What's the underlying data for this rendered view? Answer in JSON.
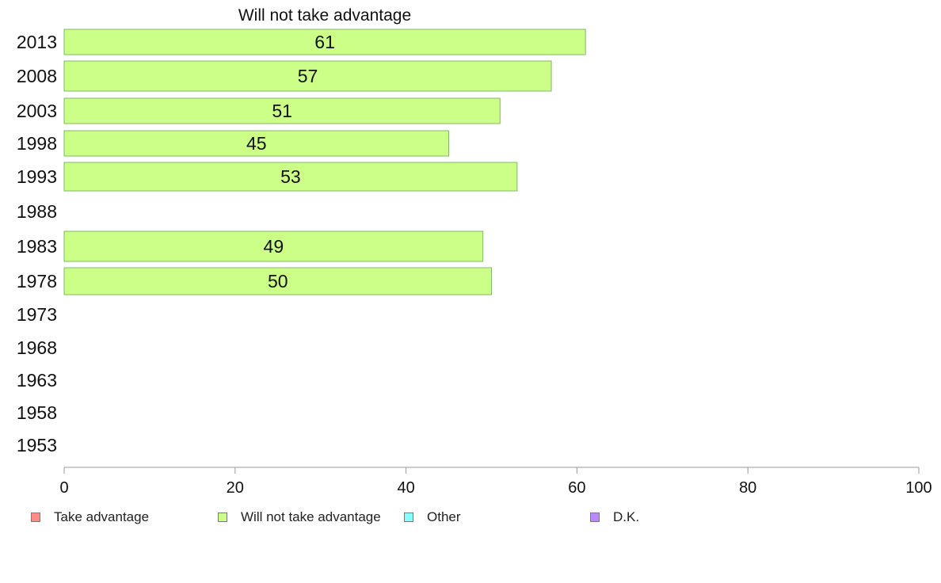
{
  "chart_data": {
    "type": "bar",
    "orientation": "horizontal",
    "title": "Will not take advantage",
    "categories": [
      "2013",
      "2008",
      "2003",
      "1998",
      "1993",
      "1988",
      "1983",
      "1978",
      "1973",
      "1968",
      "1963",
      "1958",
      "1953"
    ],
    "series": [
      {
        "name": "Take advantage",
        "color": "#ff8a8a",
        "values": [
          null,
          null,
          null,
          null,
          null,
          null,
          null,
          null,
          null,
          null,
          null,
          null,
          null
        ]
      },
      {
        "name": "Will not take advantage",
        "color": "#ccff88",
        "values": [
          61,
          57,
          51,
          45,
          53,
          null,
          49,
          50,
          null,
          null,
          null,
          null,
          null
        ]
      },
      {
        "name": "Other",
        "color": "#88ffff",
        "values": [
          null,
          null,
          null,
          null,
          null,
          null,
          null,
          null,
          null,
          null,
          null,
          null,
          null
        ]
      },
      {
        "name": "D.K.",
        "color": "#bb88ff",
        "values": [
          null,
          null,
          null,
          null,
          null,
          null,
          null,
          null,
          null,
          null,
          null,
          null,
          null
        ]
      }
    ],
    "data_labels": [
      "61",
      "57",
      "51",
      "45",
      "53",
      "",
      "49",
      "50",
      "",
      "",
      "",
      "",
      ""
    ],
    "xlim": [
      0,
      100
    ],
    "xticks": [
      "0",
      "20",
      "40",
      "60",
      "80",
      "100"
    ],
    "grid": false,
    "legend_position": "bottom"
  }
}
